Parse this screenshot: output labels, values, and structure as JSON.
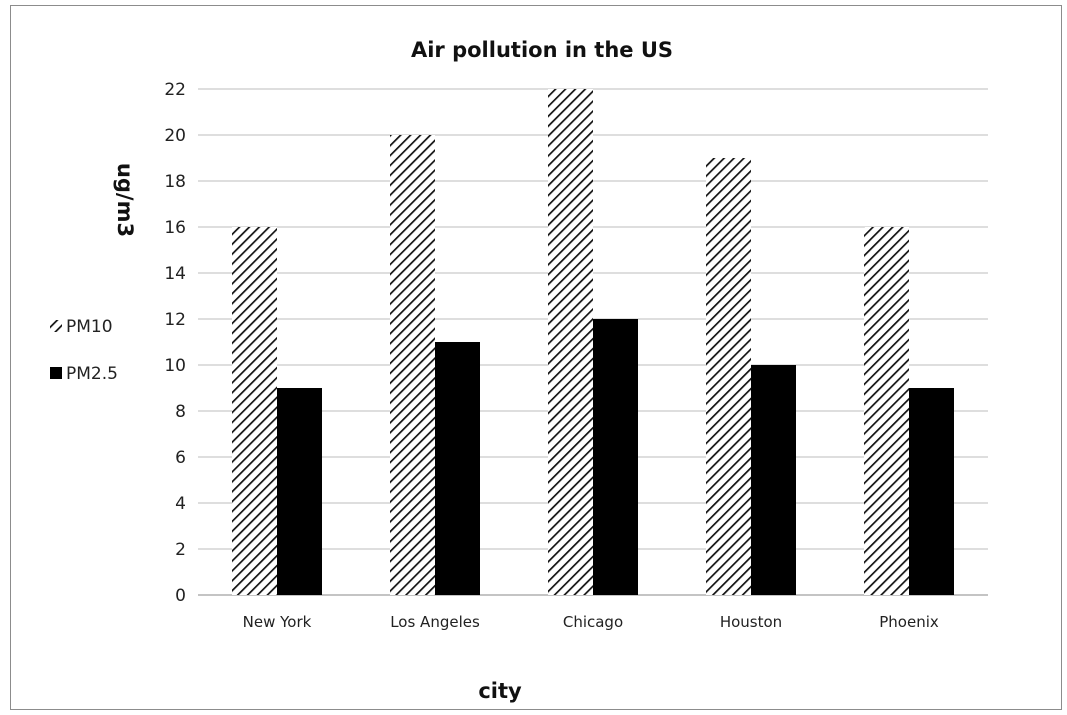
{
  "chart_data": {
    "type": "bar",
    "title": "Air pollution in the US",
    "xlabel": "city",
    "ylabel": "ug/m3",
    "categories": [
      "New York",
      "Los Angeles",
      "Chicago",
      "Houston",
      "Phoenix"
    ],
    "series": [
      {
        "name": "PM10",
        "values": [
          16,
          20,
          22,
          19,
          16
        ],
        "fill": "hatched"
      },
      {
        "name": "PM2.5",
        "values": [
          9,
          11,
          12,
          10,
          9
        ],
        "fill": "#000000"
      }
    ],
    "ylim": [
      0,
      22
    ],
    "yticks": [
      0,
      2,
      4,
      6,
      8,
      10,
      12,
      14,
      16,
      18,
      20,
      22
    ],
    "grid": true,
    "legend_position": "left"
  }
}
